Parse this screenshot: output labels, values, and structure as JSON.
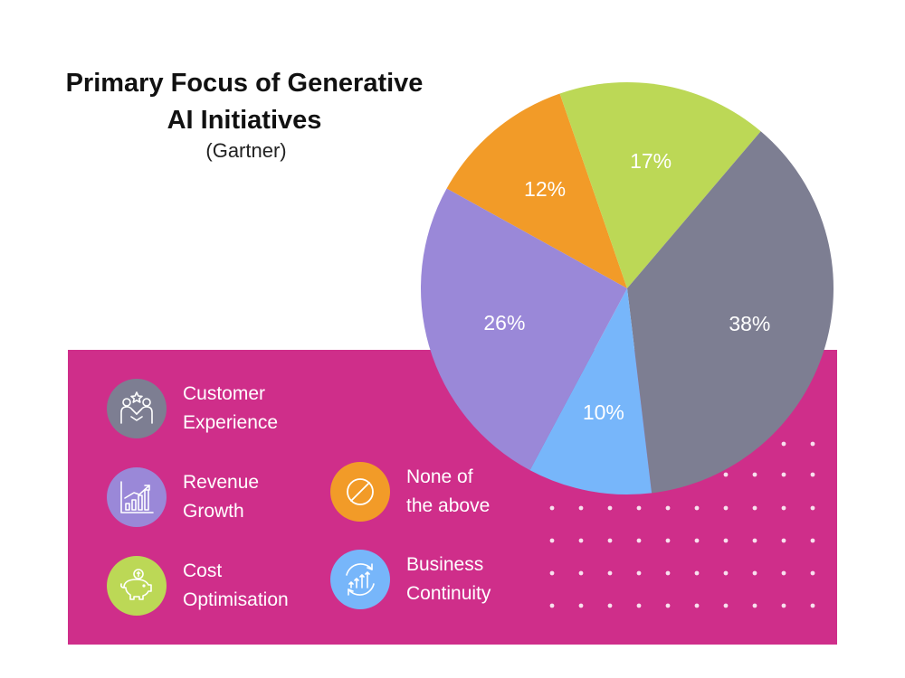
{
  "title_lines": [
    "Primary Focus of Generative",
    "AI Initiatives"
  ],
  "subtitle": "(Gartner)",
  "colors": {
    "panel": "#cf2e8a",
    "customer_experience": "#7d7e92",
    "revenue_growth": "#9a88d8",
    "cost_optimisation": "#bcd856",
    "none_of_the_above": "#f29b28",
    "business_continuity": "#77b6fa"
  },
  "legend": [
    {
      "key": "customer_experience",
      "lines": [
        "Customer",
        "Experience"
      ],
      "icon": "handshake-star-icon"
    },
    {
      "key": "revenue_growth",
      "lines": [
        "Revenue",
        "Growth"
      ],
      "icon": "bar-growth-chart-icon"
    },
    {
      "key": "cost_optimisation",
      "lines": [
        "Cost",
        "Optimisation"
      ],
      "icon": "piggy-bank-icon"
    },
    {
      "key": "none_of_the_above",
      "lines": [
        "None of",
        "the above"
      ],
      "icon": "prohibited-circle-icon"
    },
    {
      "key": "business_continuity",
      "lines": [
        "Business",
        "Continuity"
      ],
      "icon": "cycle-arrows-icon"
    }
  ],
  "chart_data": {
    "type": "pie",
    "title": "Primary Focus of Generative AI Initiatives",
    "subtitle": "(Gartner)",
    "series": [
      {
        "name": "None of the above",
        "value": 12,
        "label": "12%",
        "color": "#f29b28"
      },
      {
        "name": "Cost Optimisation",
        "value": 17,
        "label": "17%",
        "color": "#bcd856"
      },
      {
        "name": "Customer Experience",
        "value": 38,
        "label": "38%",
        "color": "#7d7e92"
      },
      {
        "name": "Business Continuity",
        "value": 10,
        "label": "10%",
        "color": "#77b6fa"
      },
      {
        "name": "Revenue Growth",
        "value": 26,
        "label": "26%",
        "color": "#9a88d8"
      }
    ]
  }
}
